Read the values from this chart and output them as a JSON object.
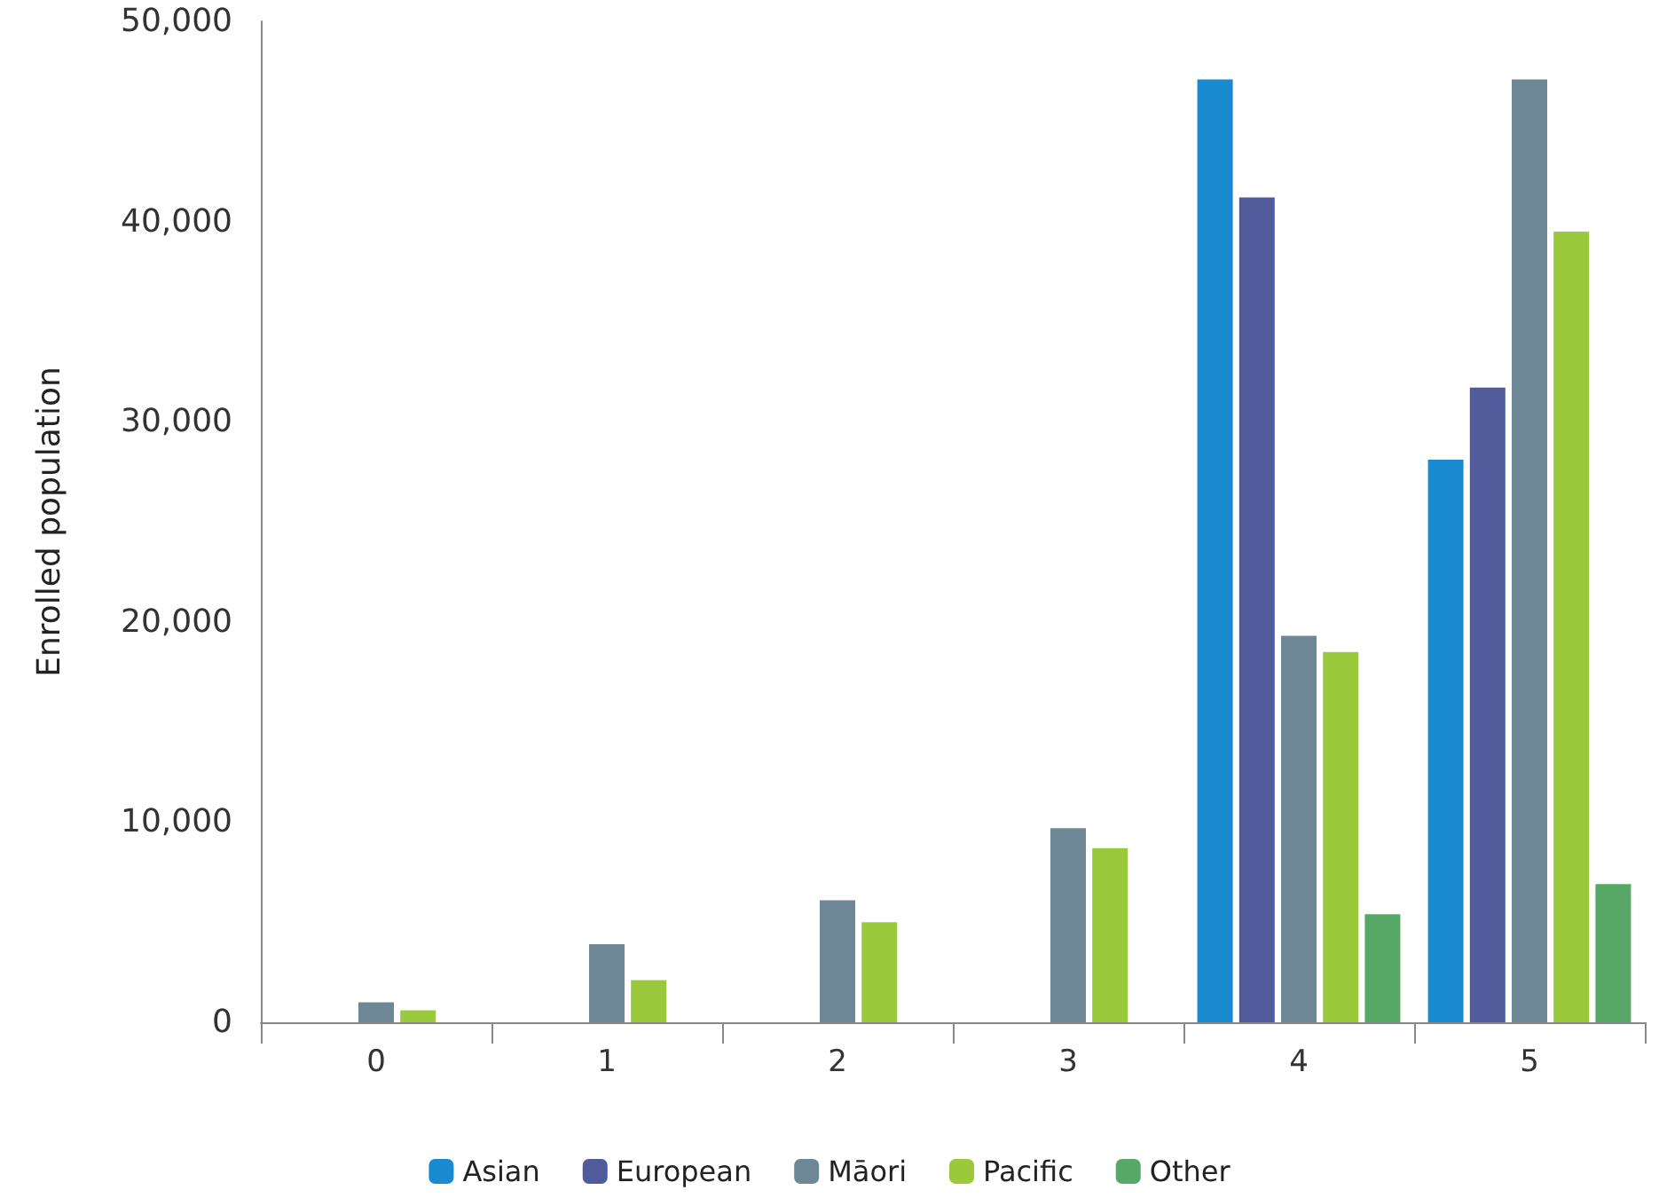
{
  "chart_data": {
    "type": "bar",
    "ylabel": "Enrolled population",
    "categories": [
      "0",
      "1",
      "2",
      "3",
      "4",
      "5"
    ],
    "series": [
      {
        "name": "Asian",
        "color": "#1a8ad0",
        "values": [
          null,
          null,
          null,
          null,
          47100,
          28100
        ]
      },
      {
        "name": "European",
        "color": "#4f5b9b",
        "values": [
          null,
          null,
          null,
          null,
          41200,
          31700
        ]
      },
      {
        "name": "Māori",
        "color": "#6e8796",
        "values": [
          1000,
          3900,
          6100,
          9700,
          19300,
          47100
        ]
      },
      {
        "name": "Pacific",
        "color": "#9bc93c",
        "values": [
          600,
          2100,
          5000,
          8700,
          18500,
          39500
        ]
      },
      {
        "name": "Other",
        "color": "#57a866",
        "values": [
          null,
          null,
          null,
          null,
          5400,
          6900
        ]
      }
    ],
    "ylim": [
      0,
      50000
    ],
    "yticks": [
      0,
      {
        "value": 10000,
        "label": "10,000"
      },
      {
        "value": 20000,
        "label": "20,000"
      },
      {
        "value": 30000,
        "label": "30,000"
      },
      {
        "value": 40000,
        "label": "40,000"
      },
      {
        "value": 50000,
        "label": "50,000"
      }
    ],
    "grid": false,
    "legend": "bottom"
  }
}
